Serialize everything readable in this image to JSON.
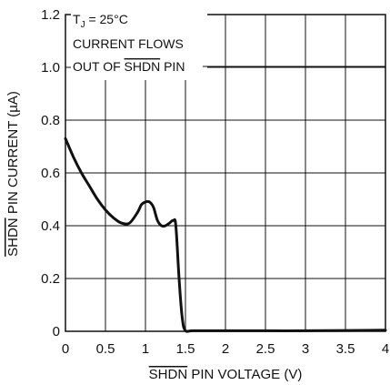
{
  "chart_data": {
    "type": "line",
    "title": "",
    "xlabel": {
      "overline": "SHDN",
      "rest": " PIN VOLTAGE (V)"
    },
    "ylabel": {
      "overline": "SHDN",
      "rest": " PIN CURRENT (µA)"
    },
    "xlim": [
      0,
      4
    ],
    "ylim": [
      0,
      1.2
    ],
    "x_ticks": [
      0,
      0.5,
      1,
      1.5,
      2,
      2.5,
      3,
      3.5,
      4
    ],
    "x_tick_labels": [
      "0",
      "0.5",
      "1",
      "1.5",
      "2",
      "2.5",
      "3",
      "3.5",
      "4"
    ],
    "y_ticks": [
      0,
      0.2,
      0.4,
      0.6,
      0.8,
      1.0,
      1.2
    ],
    "y_tick_labels": [
      "0",
      "0.2",
      "0.4",
      "0.6",
      "0.8",
      "1.0",
      "1.2"
    ],
    "grid": true,
    "annotations": {
      "line1_main": "T",
      "line1_sub": "J",
      "line1_rest": " = 25°C",
      "line2": "CURRENT FLOWS",
      "line3_pre": "OUT OF ",
      "line3_overline": "SHDN",
      "line3_post": " PIN"
    },
    "series": [
      {
        "color": "#111111",
        "x": [
          0,
          0.1,
          0.2,
          0.3,
          0.4,
          0.5,
          0.6,
          0.7,
          0.8,
          0.9,
          0.95,
          1.0,
          1.05,
          1.1,
          1.15,
          1.2,
          1.25,
          1.3,
          1.35,
          1.38,
          1.42,
          1.46,
          1.5,
          1.6,
          2.0,
          2.5,
          3.0,
          3.5,
          4.0
        ],
        "y": [
          0.73,
          0.66,
          0.6,
          0.55,
          0.5,
          0.46,
          0.43,
          0.41,
          0.41,
          0.45,
          0.48,
          0.49,
          0.49,
          0.47,
          0.42,
          0.4,
          0.4,
          0.41,
          0.42,
          0.4,
          0.2,
          0.05,
          0.003,
          0.002,
          0.002,
          0.002,
          0.002,
          0.003,
          0.004
        ]
      }
    ]
  }
}
